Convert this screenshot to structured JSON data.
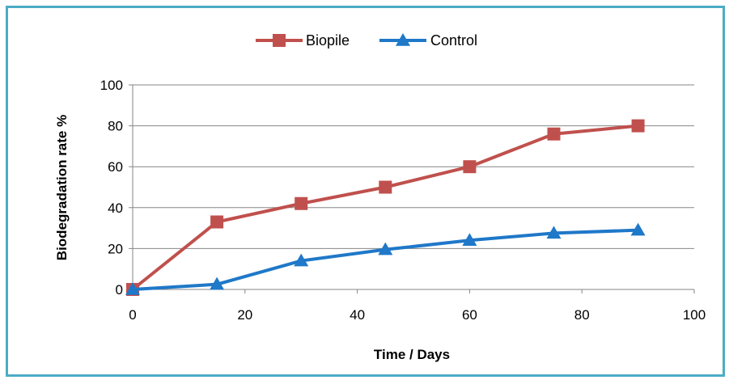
{
  "chart_data": {
    "type": "line",
    "xlabel": "Time / Days",
    "ylabel": "Biodegradation rate %",
    "xlim": [
      0,
      100
    ],
    "ylim": [
      0,
      100
    ],
    "x_ticks": [
      "0",
      "20",
      "40",
      "60",
      "80",
      "100"
    ],
    "y_ticks": [
      "0",
      "20",
      "40",
      "60",
      "80",
      "100"
    ],
    "grid": "horizontal",
    "legend_position": "top",
    "series": [
      {
        "name": "Biopile",
        "marker": "square",
        "color": "#c0504d",
        "x": [
          0,
          15,
          30,
          45,
          60,
          75,
          90
        ],
        "y": [
          0,
          33,
          42,
          50,
          60,
          76,
          80
        ]
      },
      {
        "name": "Control",
        "marker": "triangle",
        "color": "#1f78c8",
        "x": [
          0,
          15,
          30,
          45,
          60,
          75,
          90
        ],
        "y": [
          0,
          2.5,
          14,
          19.5,
          24,
          27.5,
          29
        ]
      }
    ]
  }
}
